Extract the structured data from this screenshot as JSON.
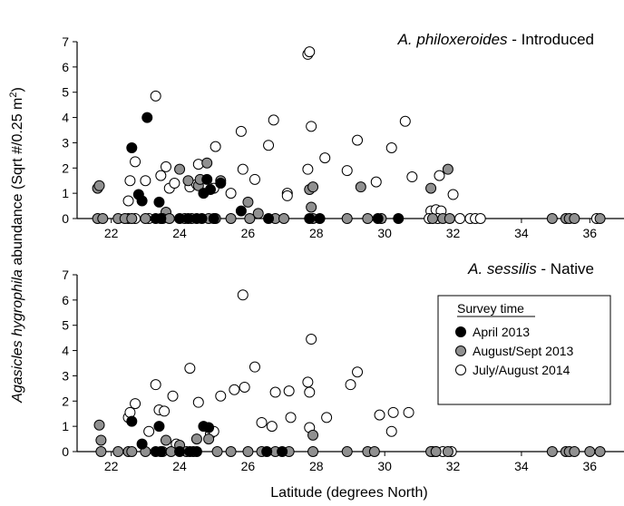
{
  "figure": {
    "xlabel": "Latitude (degrees North)",
    "ylabel_italic": "Agasicles hygrophila",
    "ylabel_rest": " abundance (Sqrt #/0.25 m",
    "ylabel_sup": "2",
    "ylabel_close": ")"
  },
  "legend": {
    "title": "Survey time",
    "entries": [
      {
        "label": "April 2013",
        "fill": "#000000"
      },
      {
        "label": "August/Sept 2013",
        "fill": "#909090"
      },
      {
        "label": "July/August 2014",
        "fill": "#ffffff"
      }
    ]
  },
  "chart_data": [
    {
      "type": "scatter",
      "title_italic": "A. philoxeroides",
      "title_rest": " - Introduced",
      "xlim": [
        21,
        37
      ],
      "ylim": [
        0,
        7
      ],
      "xticks": [
        22,
        24,
        26,
        28,
        30,
        32,
        34,
        36
      ],
      "yticks": [
        0,
        1,
        2,
        3,
        4,
        5,
        6,
        7
      ],
      "series": [
        {
          "name": "April 2013",
          "color": "#000000",
          "points": [
            [
              22.6,
              2.8
            ],
            [
              22.8,
              0.95
            ],
            [
              22.9,
              0.7
            ],
            [
              23.05,
              4.0
            ],
            [
              23.4,
              0.65
            ],
            [
              24.7,
              1.0
            ],
            [
              24.8,
              1.55
            ],
            [
              24.9,
              1.15
            ],
            [
              25.2,
              1.4
            ],
            [
              25.8,
              0.3
            ],
            [
              23.3,
              0
            ],
            [
              23.45,
              0
            ],
            [
              24.0,
              0
            ],
            [
              24.25,
              0
            ],
            [
              24.5,
              0
            ],
            [
              24.65,
              0
            ],
            [
              25.0,
              0
            ],
            [
              26.6,
              0
            ],
            [
              27.8,
              0
            ],
            [
              28.1,
              0
            ],
            [
              29.8,
              0
            ],
            [
              30.4,
              0
            ]
          ]
        },
        {
          "name": "August/Sept 2013",
          "color": "#909090",
          "points": [
            [
              21.6,
              1.2
            ],
            [
              21.65,
              1.3
            ],
            [
              23.6,
              0.25
            ],
            [
              24.0,
              1.95
            ],
            [
              24.25,
              1.5
            ],
            [
              24.55,
              1.3
            ],
            [
              24.6,
              1.55
            ],
            [
              24.8,
              2.2
            ],
            [
              25.2,
              1.5
            ],
            [
              26.0,
              0.65
            ],
            [
              26.3,
              0.2
            ],
            [
              27.8,
              1.15
            ],
            [
              27.9,
              1.25
            ],
            [
              27.85,
              0.45
            ],
            [
              29.3,
              1.25
            ],
            [
              31.35,
              1.2
            ],
            [
              31.85,
              1.95
            ],
            [
              21.6,
              0
            ],
            [
              21.75,
              0
            ],
            [
              22.2,
              0
            ],
            [
              22.4,
              0
            ],
            [
              22.6,
              0
            ],
            [
              23.0,
              0
            ],
            [
              23.5,
              0
            ],
            [
              23.7,
              0
            ],
            [
              24.15,
              0
            ],
            [
              24.35,
              0
            ],
            [
              24.85,
              0
            ],
            [
              25.05,
              0
            ],
            [
              25.5,
              0
            ],
            [
              26.05,
              0
            ],
            [
              26.8,
              0
            ],
            [
              27.05,
              0
            ],
            [
              27.9,
              0
            ],
            [
              28.9,
              0
            ],
            [
              29.5,
              0
            ],
            [
              29.9,
              0
            ],
            [
              31.4,
              0
            ],
            [
              31.7,
              0
            ],
            [
              31.9,
              0
            ],
            [
              34.9,
              0
            ],
            [
              35.3,
              0
            ],
            [
              35.4,
              0
            ],
            [
              35.55,
              0
            ],
            [
              36.3,
              0
            ]
          ]
        },
        {
          "name": "July/August 2014",
          "color": "#ffffff",
          "points": [
            [
              22.5,
              0.7
            ],
            [
              22.55,
              1.5
            ],
            [
              22.7,
              2.25
            ],
            [
              23.0,
              1.5
            ],
            [
              23.3,
              4.85
            ],
            [
              23.45,
              1.7
            ],
            [
              23.6,
              2.05
            ],
            [
              23.7,
              1.2
            ],
            [
              23.85,
              1.4
            ],
            [
              24.3,
              1.25
            ],
            [
              24.5,
              1.35
            ],
            [
              24.55,
              2.15
            ],
            [
              24.8,
              1.3
            ],
            [
              25.0,
              1.2
            ],
            [
              25.05,
              2.85
            ],
            [
              25.5,
              1.0
            ],
            [
              25.8,
              3.45
            ],
            [
              25.85,
              1.95
            ],
            [
              26.2,
              1.55
            ],
            [
              26.6,
              2.9
            ],
            [
              26.75,
              3.9
            ],
            [
              27.15,
              1.0
            ],
            [
              27.15,
              0.9
            ],
            [
              27.75,
              6.5
            ],
            [
              27.8,
              6.6
            ],
            [
              27.75,
              1.95
            ],
            [
              27.85,
              3.65
            ],
            [
              28.25,
              2.4
            ],
            [
              28.9,
              1.9
            ],
            [
              29.2,
              3.1
            ],
            [
              29.75,
              1.45
            ],
            [
              30.2,
              2.8
            ],
            [
              30.6,
              3.85
            ],
            [
              30.8,
              1.65
            ],
            [
              31.35,
              0.3
            ],
            [
              31.5,
              0.35
            ],
            [
              31.6,
              1.7
            ],
            [
              31.65,
              0.3
            ],
            [
              32.0,
              0.95
            ],
            [
              22.5,
              0
            ],
            [
              22.7,
              0
            ],
            [
              23.1,
              0
            ],
            [
              32.2,
              0
            ],
            [
              32.5,
              0
            ],
            [
              32.65,
              0
            ],
            [
              32.8,
              0
            ],
            [
              31.3,
              0
            ],
            [
              31.55,
              0
            ],
            [
              36.2,
              0
            ]
          ]
        }
      ]
    },
    {
      "type": "scatter",
      "title_italic": "A. sessilis",
      "title_rest": " - Native",
      "xlim": [
        21,
        37
      ],
      "ylim": [
        0,
        7
      ],
      "xticks": [
        22,
        24,
        26,
        28,
        30,
        32,
        34,
        36
      ],
      "yticks": [
        0,
        1,
        2,
        3,
        4,
        5,
        6,
        7
      ],
      "series": [
        {
          "name": "April 2013",
          "color": "#000000",
          "points": [
            [
              22.6,
              1.2
            ],
            [
              22.9,
              0.3
            ],
            [
              23.4,
              1.0
            ],
            [
              24.7,
              1.0
            ],
            [
              24.85,
              0.95
            ],
            [
              23.3,
              0
            ],
            [
              23.45,
              0
            ],
            [
              24.0,
              0
            ],
            [
              24.3,
              0
            ],
            [
              24.5,
              0
            ],
            [
              26.55,
              0
            ],
            [
              27.0,
              0
            ]
          ]
        },
        {
          "name": "August/Sept 2013",
          "color": "#909090",
          "points": [
            [
              21.65,
              1.05
            ],
            [
              21.7,
              0.45
            ],
            [
              23.6,
              0.45
            ],
            [
              24.0,
              0.25
            ],
            [
              24.5,
              0.5
            ],
            [
              24.85,
              0.5
            ],
            [
              27.9,
              0.65
            ],
            [
              21.7,
              0
            ],
            [
              22.2,
              0
            ],
            [
              22.5,
              0
            ],
            [
              22.6,
              0
            ],
            [
              23.0,
              0
            ],
            [
              23.5,
              0
            ],
            [
              23.75,
              0
            ],
            [
              24.2,
              0
            ],
            [
              24.4,
              0
            ],
            [
              25.1,
              0
            ],
            [
              25.5,
              0
            ],
            [
              26.0,
              0
            ],
            [
              26.4,
              0
            ],
            [
              26.8,
              0
            ],
            [
              27.2,
              0
            ],
            [
              27.9,
              0
            ],
            [
              28.9,
              0
            ],
            [
              29.5,
              0
            ],
            [
              29.7,
              0
            ],
            [
              31.35,
              0
            ],
            [
              31.5,
              0
            ],
            [
              31.85,
              0
            ],
            [
              34.9,
              0
            ],
            [
              35.3,
              0
            ],
            [
              35.4,
              0
            ],
            [
              35.55,
              0
            ],
            [
              36.0,
              0
            ],
            [
              36.3,
              0
            ]
          ]
        },
        {
          "name": "July/August 2014",
          "color": "#ffffff",
          "points": [
            [
              22.5,
              1.35
            ],
            [
              22.55,
              1.55
            ],
            [
              22.7,
              1.9
            ],
            [
              23.1,
              0.8
            ],
            [
              23.3,
              2.65
            ],
            [
              23.4,
              1.65
            ],
            [
              23.55,
              1.6
            ],
            [
              23.8,
              2.2
            ],
            [
              23.9,
              0.3
            ],
            [
              24.3,
              3.3
            ],
            [
              24.55,
              1.95
            ],
            [
              24.9,
              0.7
            ],
            [
              25.0,
              0.8
            ],
            [
              25.2,
              2.2
            ],
            [
              25.6,
              2.45
            ],
            [
              25.85,
              6.2
            ],
            [
              25.9,
              2.55
            ],
            [
              26.2,
              3.35
            ],
            [
              26.4,
              1.15
            ],
            [
              26.7,
              1.0
            ],
            [
              26.8,
              2.35
            ],
            [
              27.2,
              2.4
            ],
            [
              27.25,
              1.35
            ],
            [
              27.75,
              2.75
            ],
            [
              27.8,
              2.35
            ],
            [
              27.85,
              4.45
            ],
            [
              27.8,
              0.95
            ],
            [
              28.3,
              1.35
            ],
            [
              29.0,
              2.65
            ],
            [
              29.2,
              3.15
            ],
            [
              29.85,
              1.45
            ],
            [
              30.2,
              0.8
            ],
            [
              30.25,
              1.55
            ],
            [
              30.7,
              1.55
            ],
            [
              31.5,
              0
            ],
            [
              31.7,
              0
            ],
            [
              31.95,
              0
            ],
            [
              31.4,
              0
            ]
          ]
        }
      ]
    }
  ]
}
